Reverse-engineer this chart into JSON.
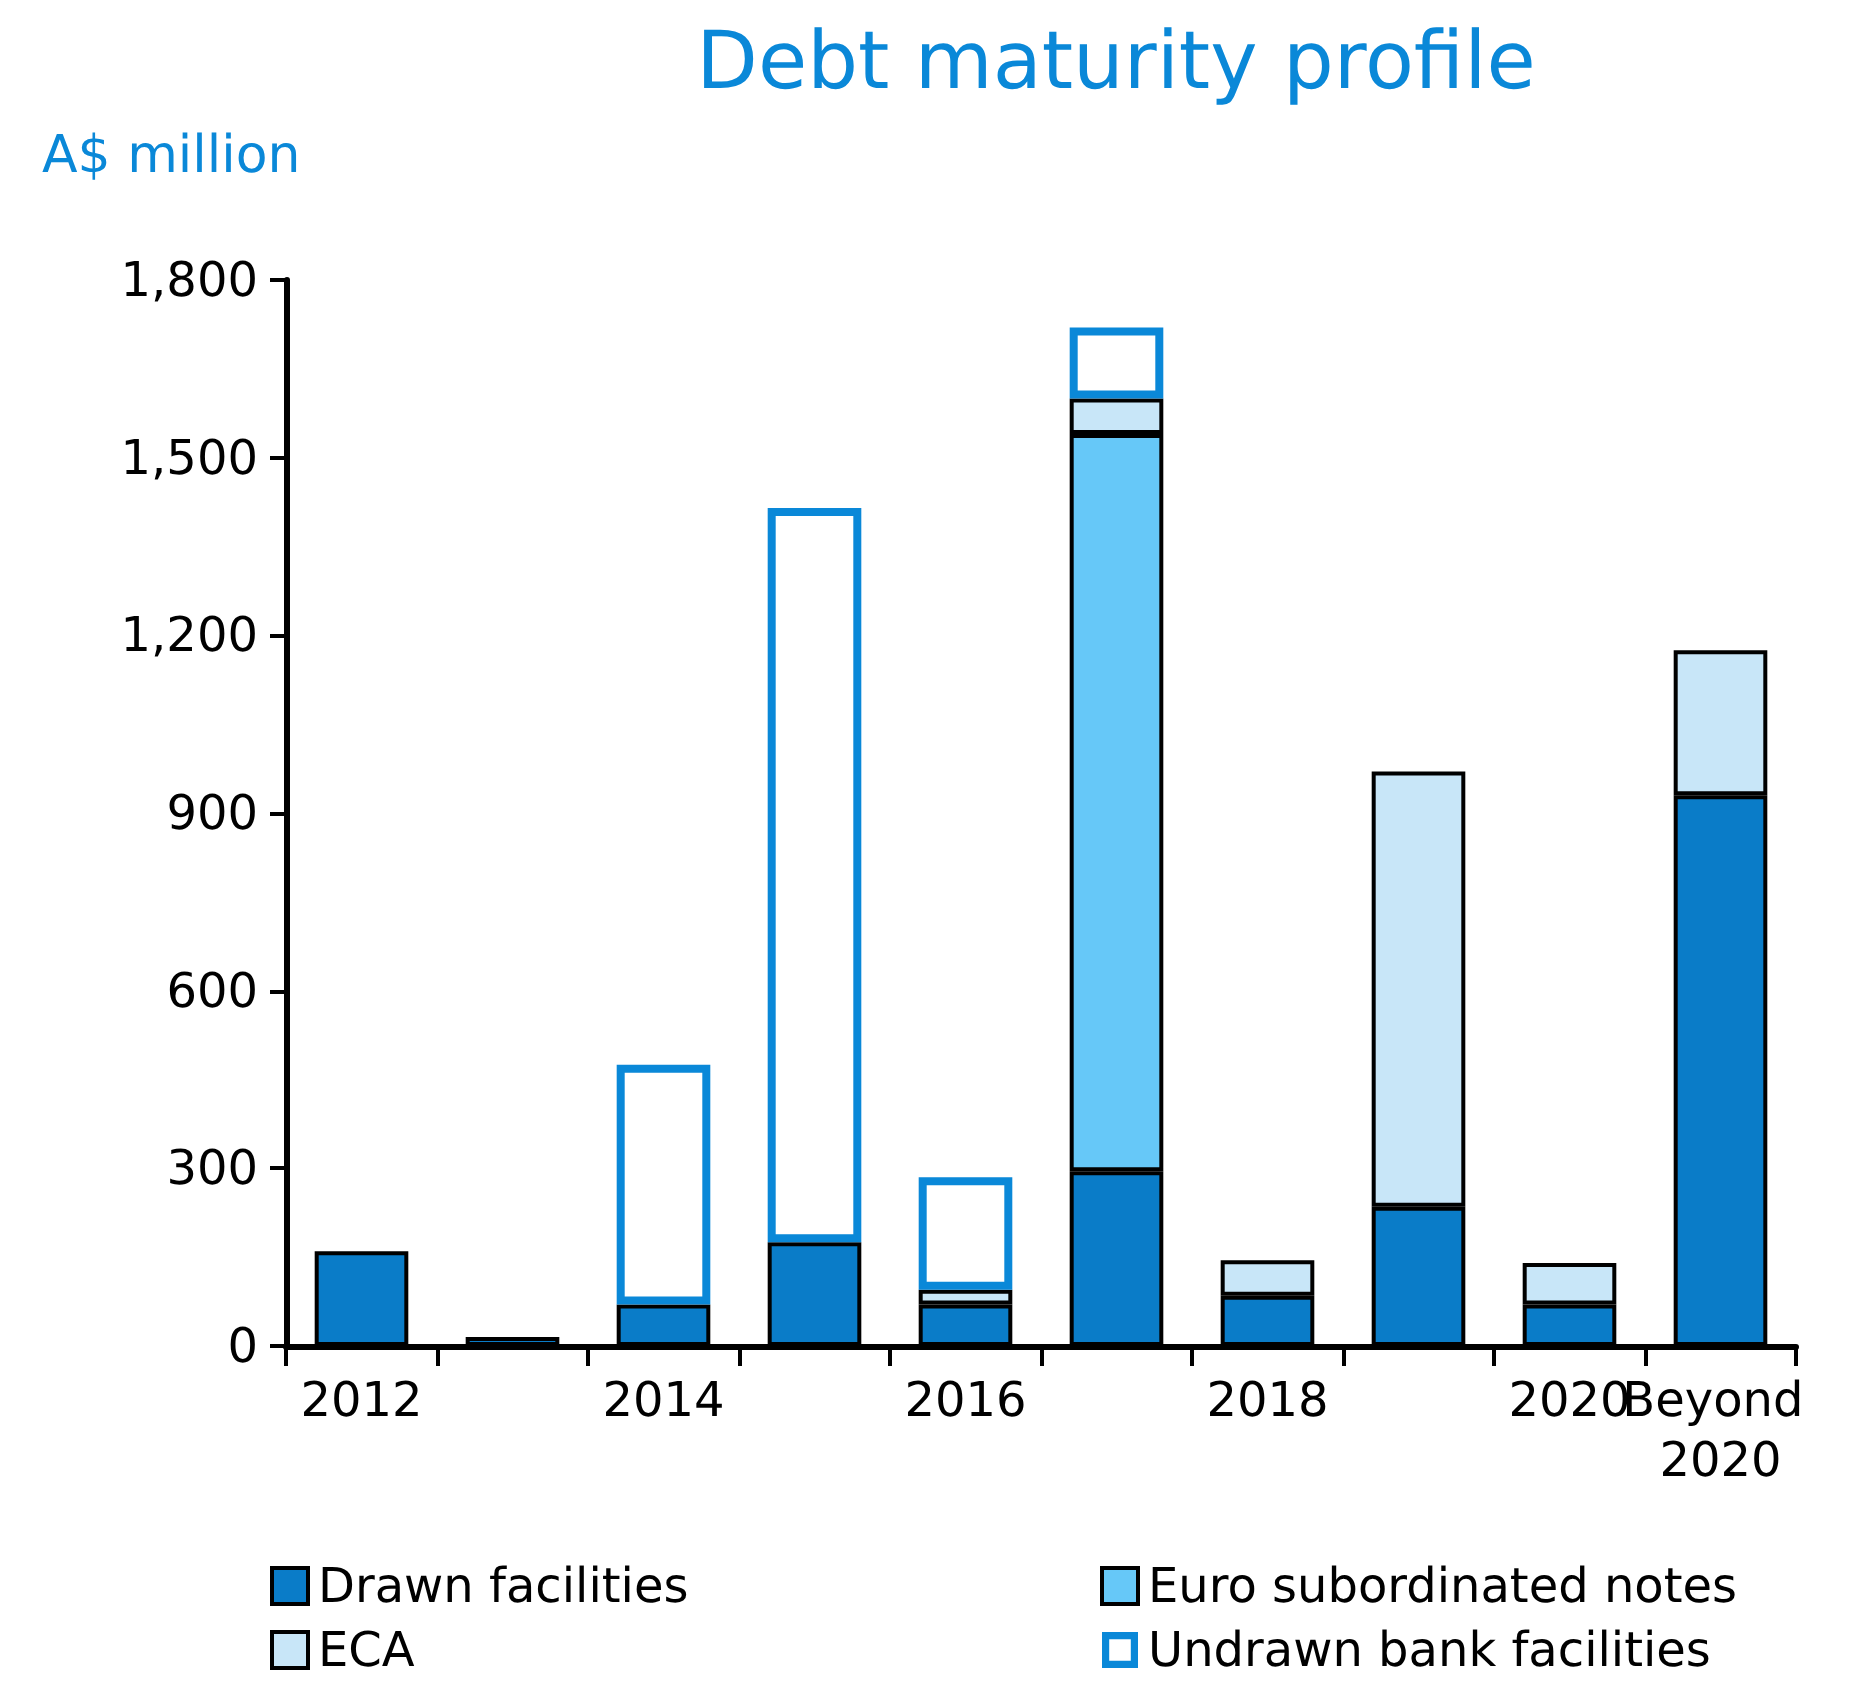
{
  "chart_data": {
    "type": "bar",
    "title": "Debt maturity profile",
    "ylabel": "A$ million",
    "categories": [
      "2012",
      null,
      "2014",
      null,
      "2016",
      null,
      "2018",
      null,
      "2020",
      "Beyond 2020"
    ],
    "stacked": true,
    "series": [
      {
        "name": "Drawn facilities",
        "color": "#0a7cc8",
        "values": [
          160,
          15,
          70,
          175,
          70,
          295,
          85,
          235,
          70,
          930
        ]
      },
      {
        "name": "Euro subordinated notes",
        "color": "#66c8f8",
        "values": [
          null,
          null,
          null,
          null,
          null,
          1245,
          null,
          null,
          null,
          null
        ]
      },
      {
        "name": "ECA",
        "color": "#c8e6f8",
        "values": [
          null,
          null,
          null,
          null,
          25,
          60,
          60,
          735,
          70,
          245
        ]
      },
      {
        "name": "Undrawn bank facilities",
        "color": "#0a88d8",
        "values": [
          null,
          null,
          405,
          1240,
          190,
          120,
          null,
          null,
          null,
          null
        ]
      }
    ],
    "ylim": [
      0,
      1800
    ],
    "yticks": [
      0,
      300,
      600,
      900,
      {
        "value": 1200,
        "label": "1,200"
      },
      {
        "value": 1500,
        "label": "1,500"
      },
      {
        "value": 1800,
        "label": "1,800"
      }
    ],
    "grid": false,
    "legend": "bottom"
  }
}
